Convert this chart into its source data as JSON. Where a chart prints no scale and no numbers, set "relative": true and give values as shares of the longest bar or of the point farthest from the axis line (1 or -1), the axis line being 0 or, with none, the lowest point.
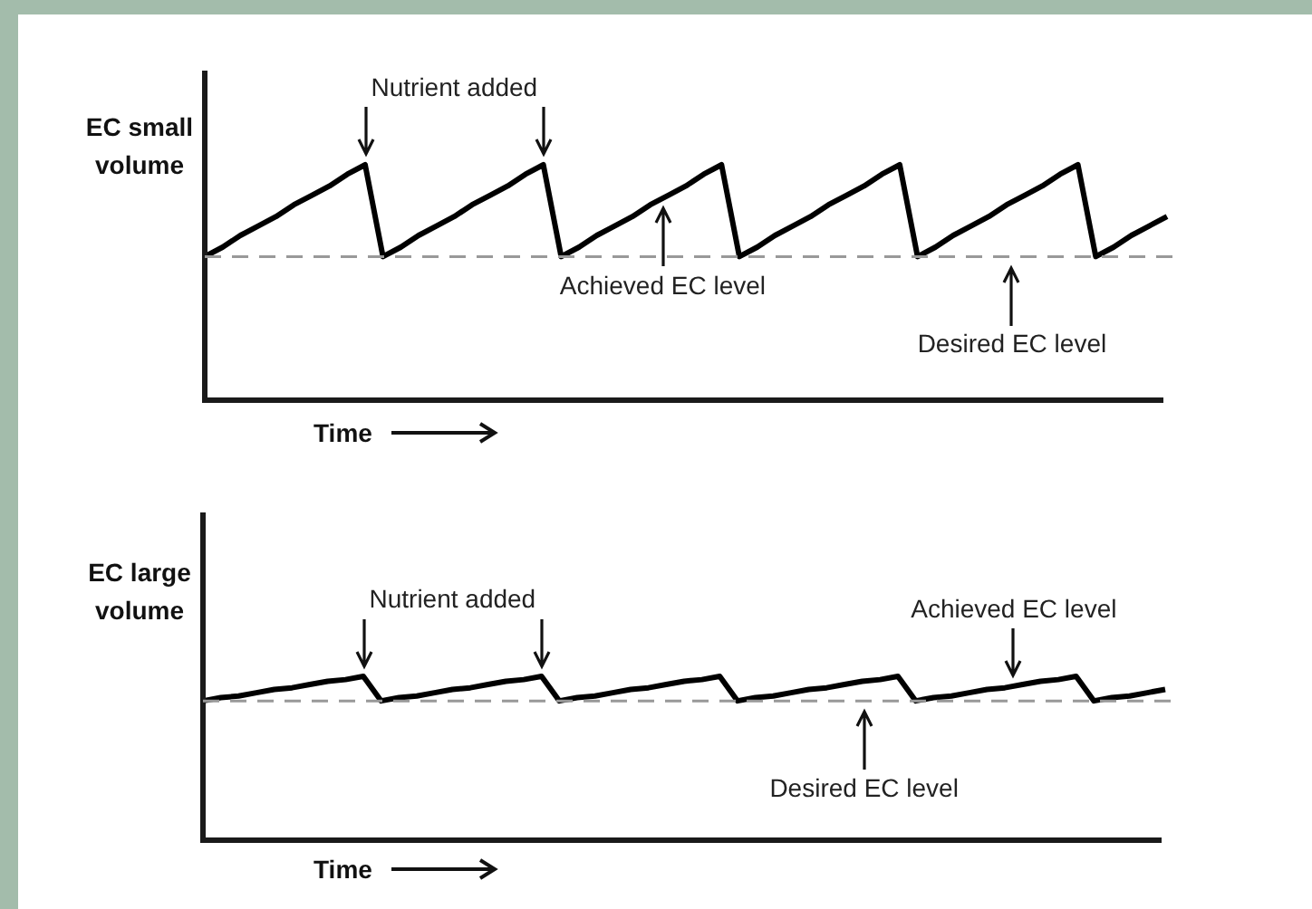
{
  "chart_data": [
    {
      "type": "line",
      "relative": true,
      "ylabel": "EC small volume",
      "xlabel": "Time",
      "legend": false,
      "grid": false,
      "categories": [
        null,
        null,
        null,
        null,
        null,
        null,
        null,
        null,
        null,
        null,
        null,
        null,
        null,
        null,
        null,
        null,
        null,
        null,
        null,
        null,
        null,
        null,
        null,
        null,
        null,
        null,
        null,
        null,
        null,
        null,
        null,
        null,
        null,
        null,
        null,
        null,
        null,
        null,
        null,
        null,
        null,
        null,
        null,
        null,
        null,
        null,
        null,
        null,
        null,
        null,
        null,
        null,
        null,
        null,
        null
      ],
      "series": [
        {
          "color": "#000000",
          "line_style": "solid",
          "values": [
            0.61,
            0.65,
            0.7,
            0.74,
            0.78,
            0.83,
            0.87,
            0.91,
            0.96,
            1,
            0.61,
            0.65,
            0.7,
            0.74,
            0.78,
            0.83,
            0.87,
            0.91,
            0.96,
            1,
            0.61,
            0.65,
            0.7,
            0.74,
            0.78,
            0.83,
            0.87,
            0.91,
            0.96,
            1,
            0.61,
            0.65,
            0.7,
            0.74,
            0.78,
            0.83,
            0.87,
            0.91,
            0.96,
            1,
            0.61,
            0.65,
            0.7,
            0.74,
            0.78,
            0.83,
            0.87,
            0.91,
            0.96,
            1,
            0.61,
            0.65,
            0.7,
            0.74,
            0.78
          ]
        }
      ],
      "ref_lines": [
        {
          "axis": "y",
          "value": 0.61,
          "color": "#999999",
          "line_style": "dashed"
        }
      ],
      "annotations": [
        "Nutrient added",
        "Achieved EC level",
        "Desired EC level"
      ]
    },
    {
      "type": "line",
      "relative": true,
      "ylabel": "EC large volume",
      "xlabel": "Time",
      "legend": false,
      "grid": false,
      "categories": [
        null,
        null,
        null,
        null,
        null,
        null,
        null,
        null,
        null,
        null,
        null,
        null,
        null,
        null,
        null,
        null,
        null,
        null,
        null,
        null,
        null,
        null,
        null,
        null,
        null,
        null,
        null,
        null,
        null,
        null,
        null,
        null,
        null,
        null,
        null,
        null,
        null,
        null,
        null,
        null,
        null,
        null,
        null,
        null,
        null,
        null,
        null,
        null,
        null,
        null,
        null,
        null,
        null,
        null,
        null
      ],
      "series": [
        {
          "color": "#000000",
          "line_style": "solid",
          "values": [
            0.85,
            0.87,
            0.88,
            0.9,
            0.92,
            0.93,
            0.95,
            0.97,
            0.98,
            1,
            0.85,
            0.87,
            0.88,
            0.9,
            0.92,
            0.93,
            0.95,
            0.97,
            0.98,
            1,
            0.85,
            0.87,
            0.88,
            0.9,
            0.92,
            0.93,
            0.95,
            0.97,
            0.98,
            1,
            0.85,
            0.87,
            0.88,
            0.9,
            0.92,
            0.93,
            0.95,
            0.97,
            0.98,
            1,
            0.85,
            0.87,
            0.88,
            0.9,
            0.92,
            0.93,
            0.95,
            0.97,
            0.98,
            1,
            0.85,
            0.87,
            0.88,
            0.9,
            0.92
          ]
        }
      ],
      "ref_lines": [
        {
          "axis": "y",
          "value": 0.85,
          "color": "#999999",
          "line_style": "dashed"
        }
      ],
      "annotations": [
        "Nutrient added",
        "Achieved EC level",
        "Desired EC level"
      ]
    }
  ]
}
